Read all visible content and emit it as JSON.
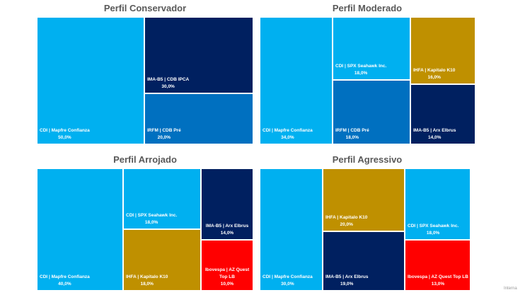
{
  "colors": {
    "cdi_light": "#00B0F0",
    "navy": "#002060",
    "blue": "#0070C0",
    "gold": "#BF9000",
    "red": "#FF0000"
  },
  "footer": "Interna",
  "chart_data": [
    {
      "type": "treemap",
      "title": "Perfil Conservador",
      "items": [
        {
          "label": "CDI | Mapfre Confianza",
          "value": 50.0,
          "pct": "50,0%"
        },
        {
          "label": "IMA-B5 | CDB IPCA",
          "value": 30.0,
          "pct": "30,0%"
        },
        {
          "label": "IRFM | CDB Pré",
          "value": 20.0,
          "pct": "20,0%"
        }
      ]
    },
    {
      "type": "treemap",
      "title": "Perfil Moderado",
      "items": [
        {
          "label": "CDI | Mapfre Confianza",
          "value": 34.0,
          "pct": "34,0%"
        },
        {
          "label": "CDI | SPX Seahawk Inc.",
          "value": 18.0,
          "pct": "18,0%"
        },
        {
          "label": "IRFM | CDB Pré",
          "value": 18.0,
          "pct": "18,0%"
        },
        {
          "label": "IHFA | Kapitalo K10",
          "value": 16.0,
          "pct": "16,0%"
        },
        {
          "label": "IMA-B5 | Arx Elbrus",
          "value": 14.0,
          "pct": "14,0%"
        }
      ]
    },
    {
      "type": "treemap",
      "title": "Perfil Arrojado",
      "items": [
        {
          "label": "CDI | Mapfre Confianza",
          "value": 40.0,
          "pct": "40,0%"
        },
        {
          "label": "CDI | SPX Seahawk Inc.",
          "value": 18.0,
          "pct": "18,0%"
        },
        {
          "label": "IHFA | Kapitalo K10",
          "value": 18.0,
          "pct": "18,0%"
        },
        {
          "label": "IMA-B5 | Arx Elbrus",
          "value": 14.0,
          "pct": "14,0%"
        },
        {
          "label": "Ibovespa | AZ Quest Top LB",
          "value": 10.0,
          "pct": "10,0%"
        }
      ]
    },
    {
      "type": "treemap",
      "title": "Perfil Agressivo",
      "items": [
        {
          "label": "CDI | Mapfre Confianza",
          "value": 30.0,
          "pct": "30,0%"
        },
        {
          "label": "IHFA | Kapitalo K10",
          "value": 20.0,
          "pct": "20,0%"
        },
        {
          "label": "IMA-B5 | Arx Elbrus",
          "value": 19.0,
          "pct": "19,0%"
        },
        {
          "label": "CDI | SPX Seahawk Inc.",
          "value": 18.0,
          "pct": "18,0%"
        },
        {
          "label": "Ibovespa | AZ Quest Top LB",
          "value": 13.0,
          "pct": "13,0%"
        }
      ]
    }
  ]
}
